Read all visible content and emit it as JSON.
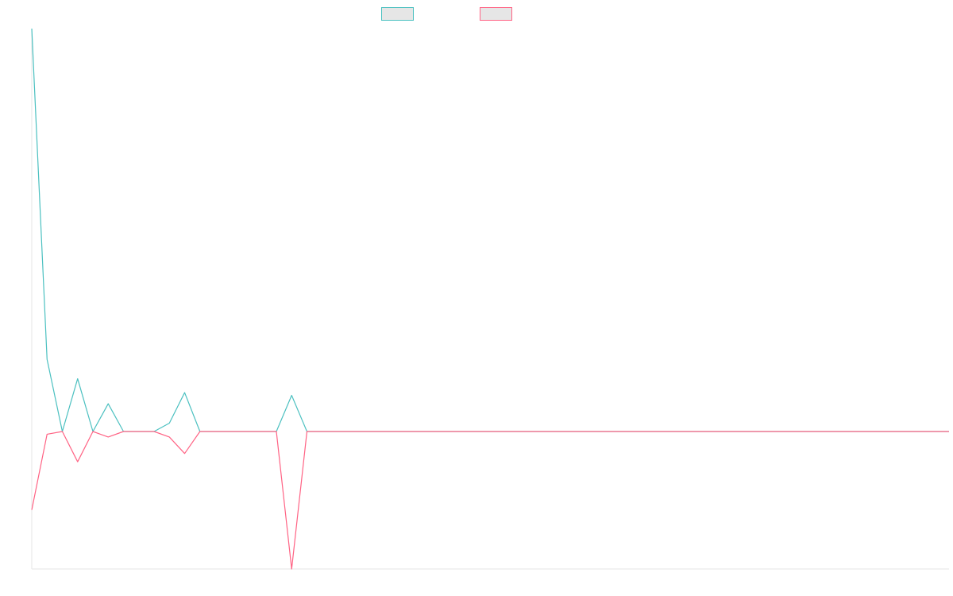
{
  "chart_data": {
    "type": "line",
    "title": "",
    "xlabel": "",
    "ylabel": "",
    "legend_position": "top-center",
    "grid": false,
    "x_count": 61,
    "xlim": [
      0,
      60
    ],
    "ylim": [
      -1,
      2.9
    ],
    "series": [
      {
        "name": "",
        "color": "#4bc0c0",
        "fill": "#e6e6e6",
        "values": [
          2.9,
          0,
          0,
          0,
          0,
          0,
          0,
          0,
          0,
          0,
          0,
          0,
          0,
          0,
          0,
          0,
          0,
          0,
          0,
          0,
          0,
          0,
          0,
          0,
          0,
          0,
          0,
          0,
          0,
          0,
          0,
          0,
          0,
          0,
          0,
          0,
          0,
          0,
          0,
          0,
          0,
          0,
          0,
          0,
          0,
          0,
          0,
          0,
          0,
          0,
          0,
          0,
          0,
          0,
          0,
          0,
          0,
          0,
          0,
          0,
          0
        ],
        "spikes": [
          [
            1,
            0.52
          ],
          [
            3,
            0.38
          ],
          [
            5,
            0.2
          ],
          [
            9,
            0.06
          ],
          [
            10,
            0.28
          ],
          [
            17,
            0.26
          ]
        ]
      },
      {
        "name": "",
        "color": "#ff6384",
        "fill": "#e6e6e6",
        "values": [
          -0.57,
          0,
          0,
          0,
          0,
          0,
          0,
          0,
          0,
          0,
          0,
          0,
          0,
          0,
          0,
          0,
          0,
          0,
          0,
          0,
          0,
          0,
          0,
          0,
          0,
          0,
          0,
          0,
          0,
          0,
          0,
          0,
          0,
          0,
          0,
          0,
          0,
          0,
          0,
          0,
          0,
          0,
          0,
          0,
          0,
          0,
          0,
          0,
          0,
          0,
          0,
          0,
          0,
          0,
          0,
          0,
          0,
          0,
          0,
          0,
          0
        ],
        "spikes": [
          [
            1,
            -0.02
          ],
          [
            3,
            -0.22
          ],
          [
            5,
            -0.04
          ],
          [
            9,
            -0.04
          ],
          [
            10,
            -0.16
          ],
          [
            17,
            -1.0
          ]
        ]
      }
    ]
  },
  "legend": {
    "items": [
      {
        "label": "",
        "color": "#4bc0c0",
        "fill": "#e6e6e6"
      },
      {
        "label": "",
        "color": "#ff6384",
        "fill": "#e6e6e6"
      }
    ]
  }
}
